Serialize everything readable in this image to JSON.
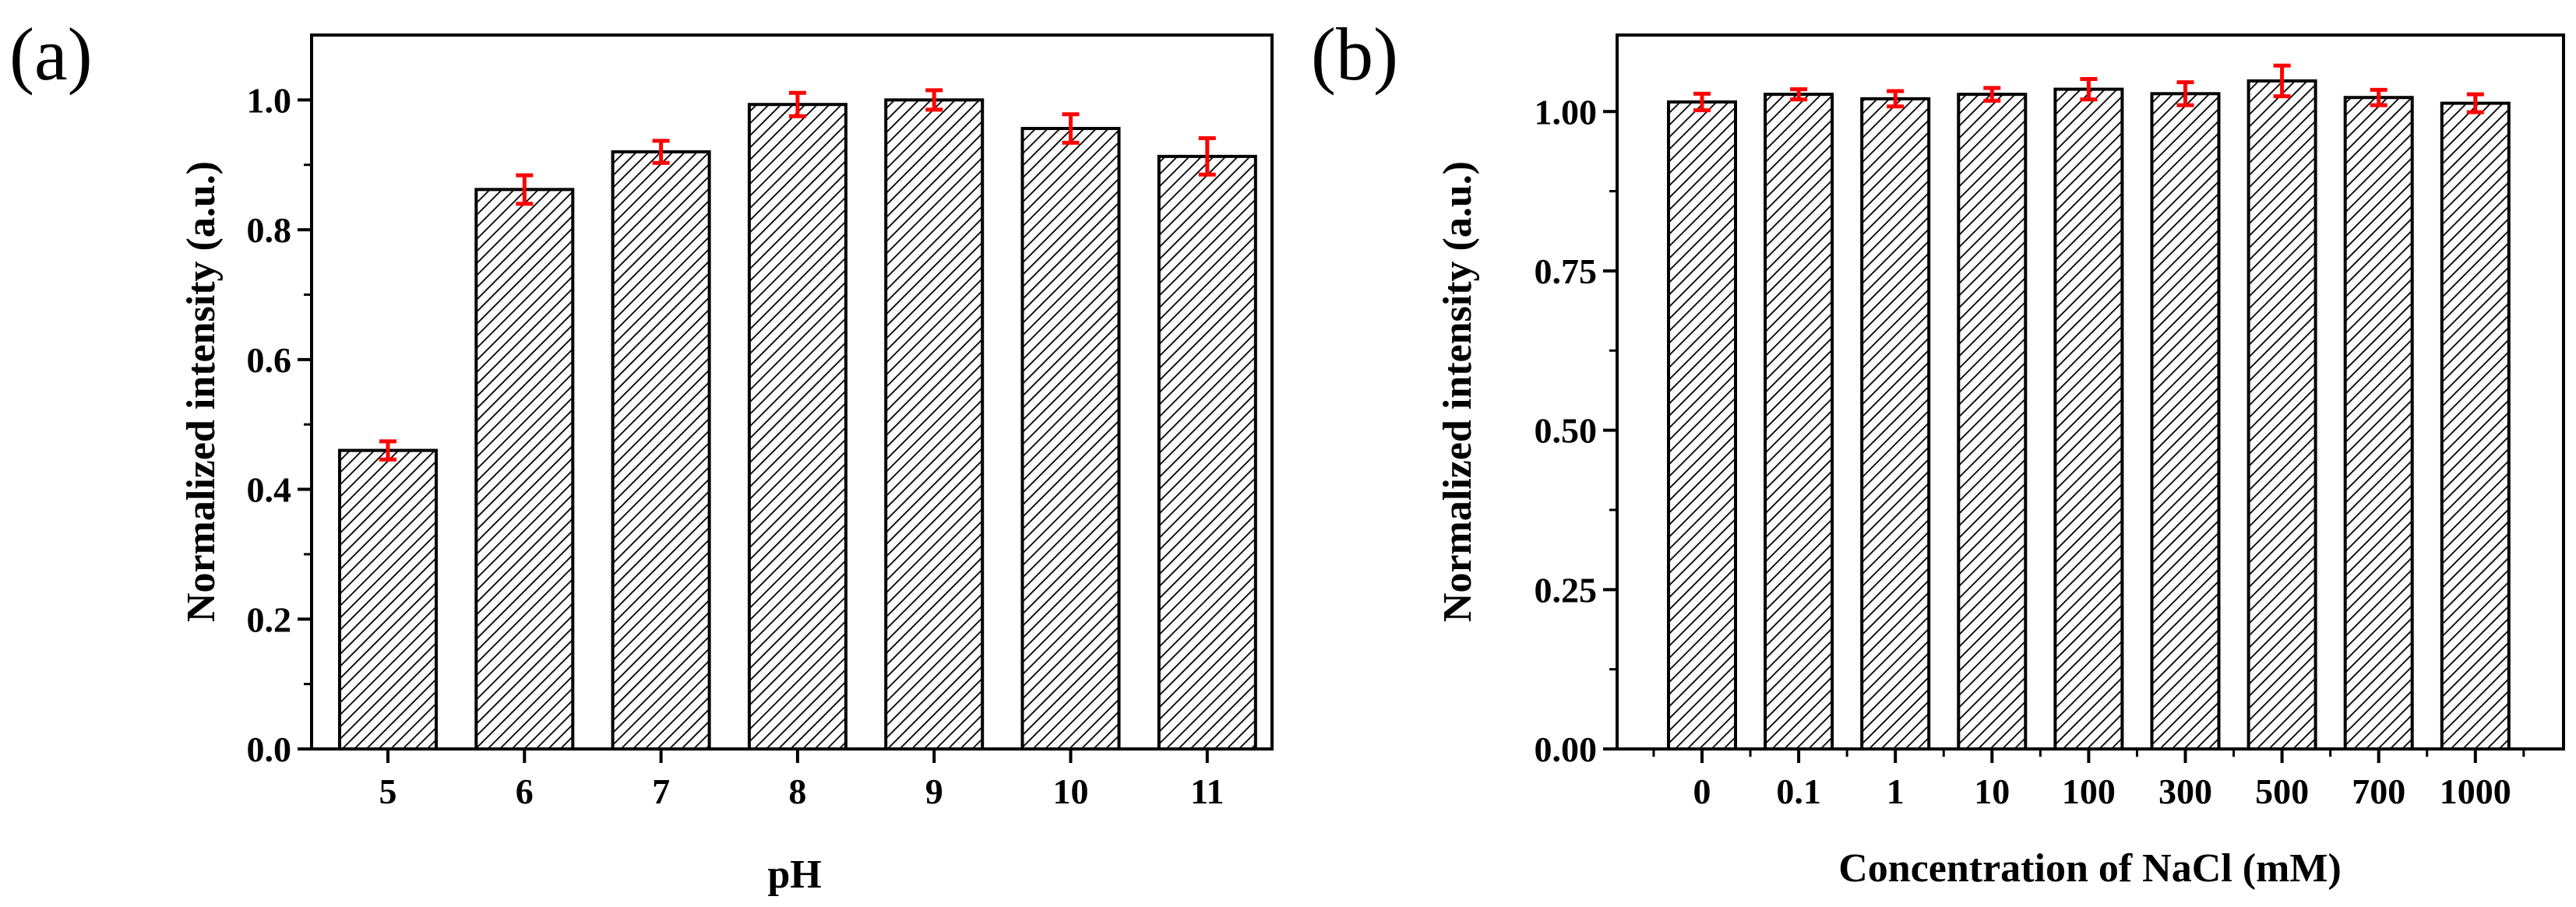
{
  "chart_data": [
    {
      "type": "bar",
      "panel_label": "(a)",
      "title": "",
      "xlabel": "pH",
      "ylabel": "Normalized intensity (a.u.)",
      "ylim": [
        0,
        1.1
      ],
      "yticks": [
        0.0,
        0.2,
        0.4,
        0.6,
        0.8,
        1.0
      ],
      "ytick_labels": [
        "0.0",
        "0.2",
        "0.4",
        "0.6",
        "0.8",
        "1.0"
      ],
      "categories": [
        "5",
        "6",
        "7",
        "8",
        "9",
        "10",
        "11"
      ],
      "values": [
        0.46,
        0.862,
        0.92,
        0.993,
        1.0,
        0.956,
        0.913
      ],
      "errors": [
        0.014,
        0.022,
        0.017,
        0.018,
        0.015,
        0.022,
        0.028
      ],
      "bar_fill": "hatched",
      "bar_edge_color": "#000000",
      "error_bar_color": "#ff0000",
      "grid": false
    },
    {
      "type": "bar",
      "panel_label": "(b)",
      "title": "",
      "xlabel": "Concentration of NaCl (mM)",
      "ylabel": "Normalized intensity (a.u.)",
      "ylim": [
        0,
        1.12
      ],
      "yticks": [
        0.0,
        0.25,
        0.5,
        0.75,
        1.0
      ],
      "ytick_labels": [
        "0.00",
        "0.25",
        "0.50",
        "0.75",
        "1.00"
      ],
      "categories": [
        "0",
        "0.1",
        "1",
        "10",
        "100",
        "300",
        "500",
        "700",
        "1000"
      ],
      "values": [
        1.015,
        1.027,
        1.02,
        1.027,
        1.035,
        1.028,
        1.048,
        1.022,
        1.013
      ],
      "errors": [
        0.013,
        0.008,
        0.012,
        0.01,
        0.016,
        0.018,
        0.024,
        0.012,
        0.014
      ],
      "bar_fill": "hatched",
      "bar_edge_color": "#000000",
      "error_bar_color": "#ff0000",
      "grid": false
    }
  ]
}
